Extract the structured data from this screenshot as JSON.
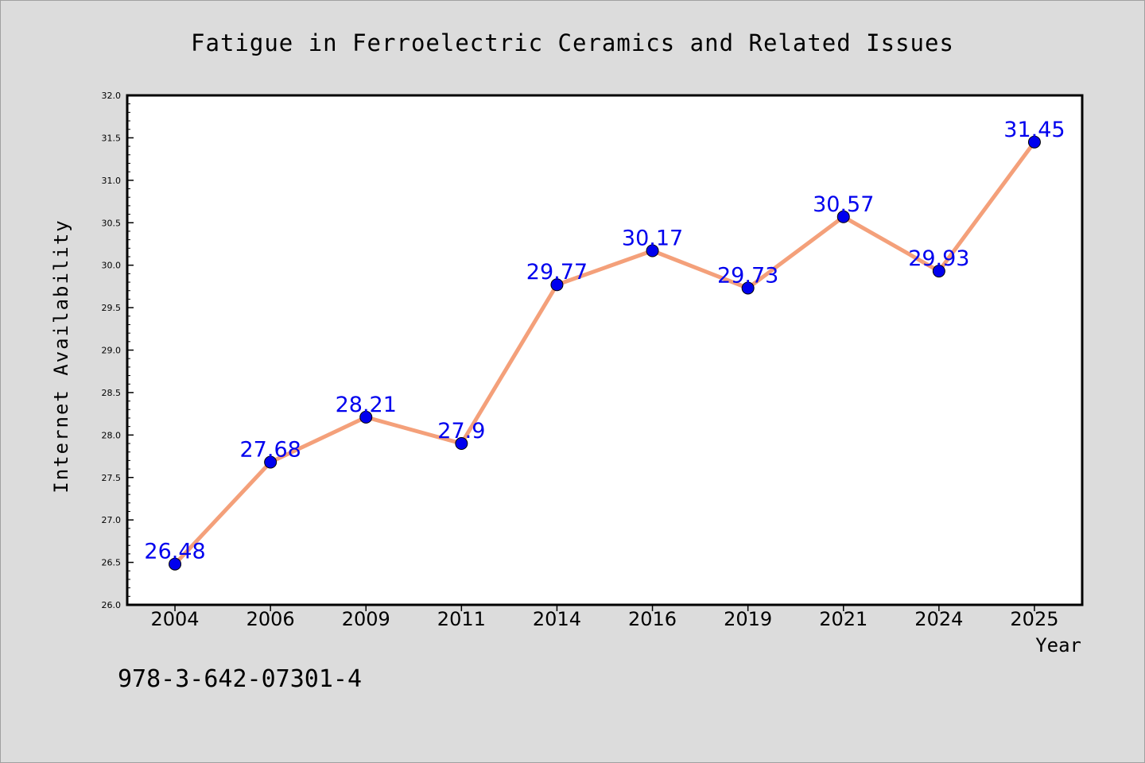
{
  "chart_data": {
    "type": "line",
    "title": "Fatigue in Ferroelectric Ceramics and Related Issues",
    "xlabel": "Year",
    "ylabel": "Internet Availability",
    "categories": [
      "2004",
      "2006",
      "2009",
      "2011",
      "2014",
      "2016",
      "2019",
      "2021",
      "2024",
      "2025"
    ],
    "series": [
      {
        "values": [
          26.48,
          27.68,
          28.21,
          27.9,
          29.77,
          30.17,
          29.73,
          30.57,
          29.93,
          31.45
        ],
        "data_labels": [
          "26.48",
          "27.68",
          "28.21",
          "27.9",
          "29.77",
          "30.17",
          "29.73",
          "30.57",
          "29.93",
          "31.45"
        ]
      }
    ],
    "ylim": [
      26.0,
      32.0
    ],
    "yticks": [
      "26.0",
      "26.5",
      "27.0",
      "27.5",
      "28.0",
      "28.5",
      "29.0",
      "29.5",
      "30.0",
      "30.5",
      "31.0",
      "31.5",
      "32.0"
    ],
    "grid": false,
    "colors": {
      "line": "#f4a07a",
      "marker": "#0000ee",
      "data_label": "#0000ee",
      "background": "#dcdcdc",
      "plot_area": "#ffffff"
    }
  },
  "footer": {
    "isbn": "978-3-642-07301-4"
  }
}
